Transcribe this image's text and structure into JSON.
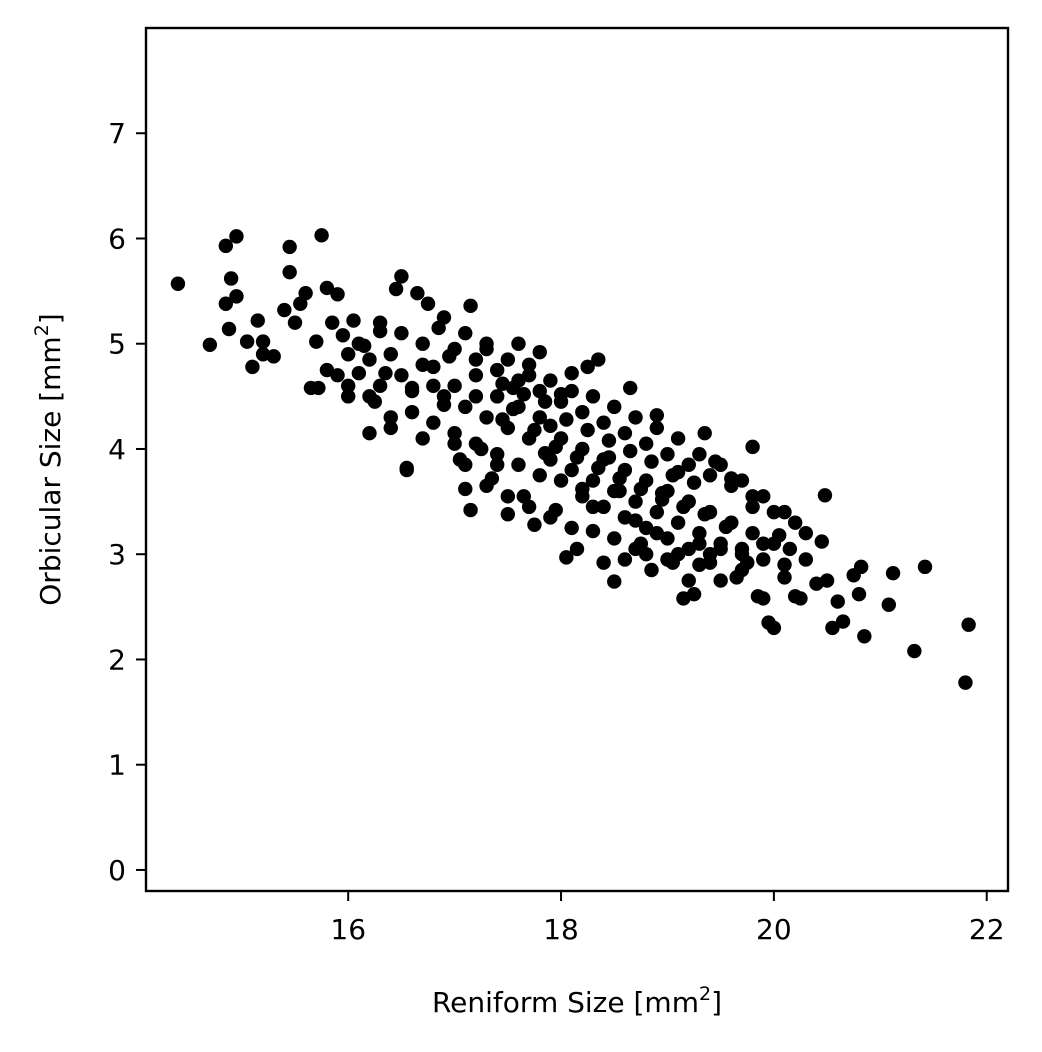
{
  "chart_data": {
    "type": "scatter",
    "title": "",
    "xlabel": {
      "main": "Reniform Size [mm",
      "sup": "2",
      "close": "]"
    },
    "ylabel": {
      "main": "Orbicular Size [mm",
      "sup": "2",
      "close": "]"
    },
    "xlim": [
      14.1,
      22.2
    ],
    "ylim": [
      -0.2,
      8.0
    ],
    "xticks": [
      16,
      18,
      20,
      22
    ],
    "xtick_labels": [
      "16",
      "18",
      "20",
      "22"
    ],
    "yticks": [
      0,
      1,
      2,
      3,
      4,
      5,
      6,
      7
    ],
    "ytick_labels": [
      "0",
      "1",
      "2",
      "3",
      "4",
      "5",
      "6",
      "7"
    ],
    "grid": false,
    "legend": "none",
    "marker_color": "#000000",
    "series": [
      {
        "points": [
          [
            14.4,
            5.57
          ],
          [
            14.7,
            4.99
          ],
          [
            14.85,
            5.93
          ],
          [
            14.95,
            6.02
          ],
          [
            14.9,
            5.62
          ],
          [
            14.85,
            5.38
          ],
          [
            14.95,
            5.45
          ],
          [
            14.88,
            5.14
          ],
          [
            15.05,
            5.02
          ],
          [
            15.1,
            4.78
          ],
          [
            15.15,
            5.22
          ],
          [
            15.2,
            4.9
          ],
          [
            15.2,
            5.02
          ],
          [
            15.3,
            4.88
          ],
          [
            15.4,
            5.32
          ],
          [
            15.45,
            5.92
          ],
          [
            15.45,
            5.68
          ],
          [
            15.5,
            5.2
          ],
          [
            15.55,
            5.38
          ],
          [
            15.6,
            5.48
          ],
          [
            15.65,
            4.58
          ],
          [
            15.7,
            5.02
          ],
          [
            15.72,
            4.58
          ],
          [
            15.75,
            6.03
          ],
          [
            15.8,
            5.53
          ],
          [
            15.85,
            5.2
          ],
          [
            15.9,
            5.47
          ],
          [
            15.95,
            5.08
          ],
          [
            16.0,
            4.5
          ],
          [
            16.05,
            5.22
          ],
          [
            16.1,
            4.72
          ],
          [
            16.15,
            4.98
          ],
          [
            16.2,
            4.15
          ],
          [
            16.25,
            4.45
          ],
          [
            16.3,
            5.12
          ],
          [
            16.35,
            4.72
          ],
          [
            16.4,
            4.2
          ],
          [
            16.45,
            5.52
          ],
          [
            16.5,
            5.64
          ],
          [
            16.55,
            3.82
          ],
          [
            16.55,
            3.8
          ],
          [
            16.6,
            4.58
          ],
          [
            16.65,
            5.48
          ],
          [
            16.7,
            4.1
          ],
          [
            16.75,
            5.38
          ],
          [
            16.8,
            4.78
          ],
          [
            16.85,
            5.15
          ],
          [
            16.9,
            4.42
          ],
          [
            16.95,
            4.88
          ],
          [
            17.0,
            4.05
          ],
          [
            17.05,
            3.9
          ],
          [
            17.1,
            3.62
          ],
          [
            17.15,
            3.42
          ],
          [
            17.15,
            5.36
          ],
          [
            17.2,
            4.5
          ],
          [
            17.25,
            4.0
          ],
          [
            17.3,
            5.0
          ],
          [
            17.35,
            3.72
          ],
          [
            17.4,
            3.85
          ],
          [
            17.45,
            4.28
          ],
          [
            17.5,
            3.38
          ],
          [
            17.55,
            4.58
          ],
          [
            17.6,
            5.0
          ],
          [
            17.65,
            3.55
          ],
          [
            17.7,
            4.7
          ],
          [
            17.75,
            3.28
          ],
          [
            17.8,
            4.92
          ],
          [
            17.85,
            3.96
          ],
          [
            17.9,
            4.22
          ],
          [
            17.95,
            3.42
          ],
          [
            18.0,
            4.52
          ],
          [
            18.05,
            2.97
          ],
          [
            18.1,
            4.72
          ],
          [
            18.15,
            3.05
          ],
          [
            18.2,
            3.62
          ],
          [
            18.25,
            4.78
          ],
          [
            18.3,
            3.22
          ],
          [
            18.35,
            4.85
          ],
          [
            18.4,
            2.92
          ],
          [
            18.45,
            3.92
          ],
          [
            18.5,
            2.74
          ],
          [
            18.55,
            3.6
          ],
          [
            18.6,
            2.95
          ],
          [
            18.65,
            4.58
          ],
          [
            18.7,
            3.32
          ],
          [
            18.75,
            3.1
          ],
          [
            18.8,
            3.0
          ],
          [
            18.85,
            2.85
          ],
          [
            18.9,
            4.32
          ],
          [
            18.95,
            3.52
          ],
          [
            19.0,
            2.95
          ],
          [
            19.05,
            2.92
          ],
          [
            19.1,
            3.78
          ],
          [
            19.15,
            2.58
          ],
          [
            19.2,
            2.75
          ],
          [
            19.25,
            2.62
          ],
          [
            19.3,
            3.1
          ],
          [
            19.35,
            4.15
          ],
          [
            19.4,
            2.92
          ],
          [
            19.45,
            3.88
          ],
          [
            19.5,
            2.75
          ],
          [
            19.55,
            3.26
          ],
          [
            19.6,
            3.72
          ],
          [
            19.65,
            2.78
          ],
          [
            19.7,
            3.05
          ],
          [
            19.75,
            2.92
          ],
          [
            19.8,
            4.02
          ],
          [
            19.85,
            2.6
          ],
          [
            19.9,
            2.58
          ],
          [
            19.95,
            2.35
          ],
          [
            20.0,
            2.3
          ],
          [
            20.05,
            3.18
          ],
          [
            20.1,
            2.78
          ],
          [
            20.15,
            3.05
          ],
          [
            20.2,
            2.6
          ],
          [
            20.25,
            2.58
          ],
          [
            20.3,
            2.95
          ],
          [
            20.4,
            2.72
          ],
          [
            20.45,
            3.12
          ],
          [
            20.48,
            3.56
          ],
          [
            20.5,
            2.75
          ],
          [
            20.55,
            2.3
          ],
          [
            20.6,
            2.55
          ],
          [
            20.65,
            2.36
          ],
          [
            20.75,
            2.8
          ],
          [
            20.8,
            2.62
          ],
          [
            20.82,
            2.88
          ],
          [
            20.85,
            2.22
          ],
          [
            21.08,
            2.52
          ],
          [
            21.12,
            2.82
          ],
          [
            21.32,
            2.08
          ],
          [
            21.42,
            2.88
          ],
          [
            21.8,
            1.78
          ],
          [
            21.83,
            2.33
          ],
          [
            16.0,
            4.9
          ],
          [
            16.1,
            5.0
          ],
          [
            16.2,
            4.85
          ],
          [
            16.3,
            4.6
          ],
          [
            16.4,
            4.9
          ],
          [
            16.5,
            4.7
          ],
          [
            16.6,
            4.55
          ],
          [
            16.7,
            4.8
          ],
          [
            16.8,
            4.6
          ],
          [
            16.9,
            4.5
          ],
          [
            17.0,
            4.6
          ],
          [
            17.1,
            4.4
          ],
          [
            17.2,
            4.7
          ],
          [
            17.3,
            4.3
          ],
          [
            17.4,
            4.5
          ],
          [
            17.5,
            4.2
          ],
          [
            17.6,
            4.4
          ],
          [
            17.7,
            4.1
          ],
          [
            17.8,
            4.3
          ],
          [
            17.9,
            3.9
          ],
          [
            18.0,
            4.1
          ],
          [
            18.1,
            3.8
          ],
          [
            18.2,
            4.0
          ],
          [
            18.3,
            3.7
          ],
          [
            18.4,
            3.9
          ],
          [
            18.5,
            3.6
          ],
          [
            18.6,
            3.8
          ],
          [
            18.7,
            3.5
          ],
          [
            18.8,
            3.7
          ],
          [
            18.9,
            3.4
          ],
          [
            19.0,
            3.6
          ],
          [
            19.1,
            3.3
          ],
          [
            19.2,
            3.5
          ],
          [
            19.3,
            3.2
          ],
          [
            19.4,
            3.4
          ],
          [
            19.5,
            3.1
          ],
          [
            19.6,
            3.3
          ],
          [
            19.7,
            3.0
          ],
          [
            19.8,
            3.2
          ],
          [
            19.9,
            3.1
          ],
          [
            17.0,
            4.95
          ],
          [
            17.2,
            4.85
          ],
          [
            17.4,
            4.75
          ],
          [
            17.6,
            4.65
          ],
          [
            17.8,
            4.55
          ],
          [
            18.0,
            4.45
          ],
          [
            18.2,
            4.35
          ],
          [
            18.4,
            4.25
          ],
          [
            18.6,
            4.15
          ],
          [
            18.8,
            4.05
          ],
          [
            19.0,
            3.95
          ],
          [
            19.2,
            3.85
          ],
          [
            19.4,
            3.75
          ],
          [
            19.6,
            3.65
          ],
          [
            19.8,
            3.55
          ],
          [
            20.0,
            3.4
          ],
          [
            17.1,
            3.85
          ],
          [
            17.3,
            3.65
          ],
          [
            17.5,
            3.55
          ],
          [
            17.7,
            3.45
          ],
          [
            17.9,
            3.35
          ],
          [
            18.1,
            3.25
          ],
          [
            18.3,
            3.45
          ],
          [
            18.5,
            3.15
          ],
          [
            18.7,
            3.05
          ],
          [
            18.9,
            3.2
          ],
          [
            19.1,
            3.0
          ],
          [
            19.3,
            2.9
          ],
          [
            19.5,
            3.05
          ],
          [
            19.7,
            2.85
          ],
          [
            19.9,
            2.95
          ],
          [
            20.1,
            2.9
          ],
          [
            16.3,
            5.2
          ],
          [
            16.5,
            5.1
          ],
          [
            16.7,
            5.0
          ],
          [
            16.9,
            5.25
          ],
          [
            17.1,
            5.1
          ],
          [
            17.3,
            4.95
          ],
          [
            17.5,
            4.85
          ],
          [
            17.7,
            4.8
          ],
          [
            17.9,
            4.65
          ],
          [
            18.1,
            4.55
          ],
          [
            18.3,
            4.5
          ],
          [
            18.5,
            4.4
          ],
          [
            18.7,
            4.3
          ],
          [
            18.9,
            4.2
          ],
          [
            19.1,
            4.1
          ],
          [
            19.3,
            3.95
          ],
          [
            19.5,
            3.85
          ],
          [
            19.7,
            3.7
          ],
          [
            19.9,
            3.55
          ],
          [
            20.1,
            3.4
          ],
          [
            20.2,
            3.3
          ],
          [
            20.3,
            3.2
          ],
          [
            20.0,
            3.1
          ],
          [
            19.8,
            3.45
          ],
          [
            15.8,
            4.75
          ],
          [
            15.9,
            4.7
          ],
          [
            16.0,
            4.6
          ],
          [
            16.2,
            4.5
          ],
          [
            16.4,
            4.3
          ],
          [
            16.6,
            4.35
          ],
          [
            16.8,
            4.25
          ],
          [
            17.0,
            4.15
          ],
          [
            17.2,
            4.05
          ],
          [
            17.4,
            3.95
          ],
          [
            17.6,
            3.85
          ],
          [
            17.8,
            3.75
          ],
          [
            18.0,
            3.7
          ],
          [
            18.2,
            3.55
          ],
          [
            18.4,
            3.45
          ],
          [
            18.6,
            3.35
          ],
          [
            18.8,
            3.25
          ],
          [
            19.0,
            3.15
          ],
          [
            19.2,
            3.05
          ],
          [
            19.4,
            3.0
          ],
          [
            17.45,
            4.62
          ],
          [
            17.55,
            4.38
          ],
          [
            17.65,
            4.52
          ],
          [
            17.75,
            4.18
          ],
          [
            17.85,
            4.45
          ],
          [
            17.95,
            4.02
          ],
          [
            18.05,
            4.28
          ],
          [
            18.15,
            3.92
          ],
          [
            18.25,
            4.18
          ],
          [
            18.35,
            3.82
          ],
          [
            18.45,
            4.08
          ],
          [
            18.55,
            3.72
          ],
          [
            18.65,
            3.98
          ],
          [
            18.75,
            3.62
          ],
          [
            18.85,
            3.88
          ],
          [
            18.95,
            3.58
          ],
          [
            19.05,
            3.75
          ],
          [
            19.15,
            3.45
          ],
          [
            19.25,
            3.68
          ],
          [
            19.35,
            3.38
          ]
        ]
      }
    ]
  }
}
